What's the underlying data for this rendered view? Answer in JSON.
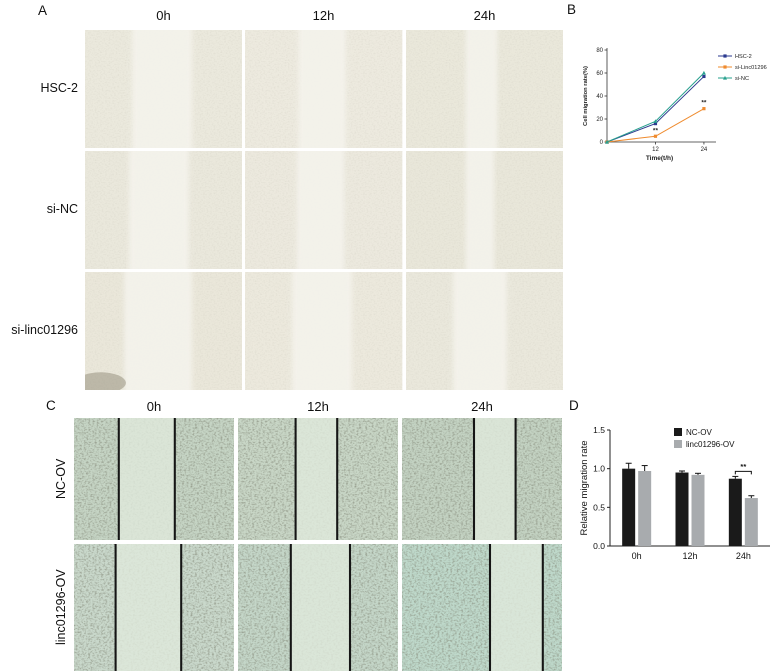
{
  "panelA": {
    "label": "A",
    "col_headers": [
      "0h",
      "12h",
      "24h"
    ],
    "row_labels": [
      "HSC-2",
      "si-NC",
      "si-linc01296"
    ]
  },
  "panelB": {
    "label": "B"
  },
  "panelC": {
    "label": "C",
    "col_headers": [
      "0h",
      "12h",
      "24h"
    ],
    "row_labels": [
      "NC-OV",
      "linc01296-OV"
    ]
  },
  "panelD": {
    "label": "D"
  },
  "chart_data": [
    {
      "type": "line",
      "panel": "B",
      "x": [
        0,
        12,
        24
      ],
      "xticks": [
        12,
        24
      ],
      "xlabel": "Time(t/h)",
      "ylabel": "Cell migration rate(%)",
      "ylim": [
        0,
        80
      ],
      "yticks": [
        0,
        20,
        40,
        60,
        80
      ],
      "series": [
        {
          "name": "HSC-2",
          "color": "#2b3a8f",
          "marker": "square",
          "values": [
            0,
            16,
            57
          ]
        },
        {
          "name": "si-Linc01296",
          "color": "#ef8b2e",
          "marker": "square",
          "values": [
            0,
            5,
            29
          ]
        },
        {
          "name": "si-NC",
          "color": "#27a08e",
          "marker": "triangle",
          "values": [
            0,
            18,
            60
          ]
        }
      ],
      "annotations": [
        {
          "x": 12,
          "series": "si-Linc01296",
          "text": "**"
        },
        {
          "x": 24,
          "series": "si-Linc01296",
          "text": "**"
        }
      ],
      "legend_position": "right"
    },
    {
      "type": "bar",
      "panel": "D",
      "categories": [
        "0h",
        "12h",
        "24h"
      ],
      "ylabel": "Relative migration rate",
      "ylim": [
        0,
        1.5
      ],
      "yticks": [
        "0.0",
        "0.5",
        "1.0",
        "1.5"
      ],
      "series": [
        {
          "name": "NC-OV",
          "color": "#1a1a1a",
          "values": [
            1.0,
            0.95,
            0.87
          ],
          "errors": [
            0.07,
            0.02,
            0.03
          ]
        },
        {
          "name": "linc01296-OV",
          "color": "#a8abae",
          "values": [
            0.97,
            0.92,
            0.62
          ],
          "errors": [
            0.07,
            0.02,
            0.03
          ]
        }
      ],
      "annotation": {
        "category": "24h",
        "text": "**"
      },
      "legend_position": "top-right"
    }
  ]
}
